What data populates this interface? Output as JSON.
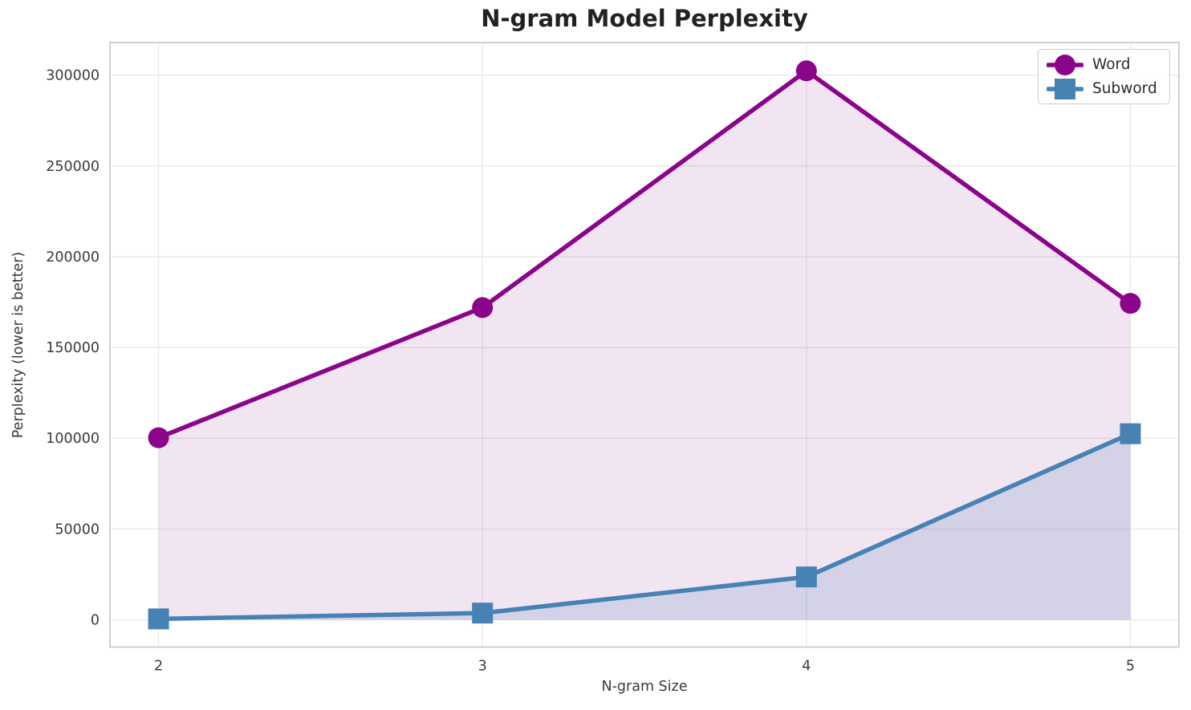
{
  "chart_data": {
    "type": "line",
    "title": "N-gram Model Perplexity",
    "xlabel": "N-gram Size",
    "ylabel": "Perplexity (lower is better)",
    "x": [
      2,
      3,
      4,
      5
    ],
    "series": [
      {
        "name": "Word",
        "marker": "circle",
        "color": "#8A058A",
        "fill_color": "#800080",
        "fill_alpha": 0.1,
        "values": [
          100300,
          172000,
          302400,
          174300
        ]
      },
      {
        "name": "Subword",
        "marker": "square",
        "color": "#4682B4",
        "fill_color": "#4682B4",
        "fill_alpha": 0.18,
        "values": [
          500,
          3700,
          23600,
          102500
        ]
      }
    ],
    "xticks": [
      2,
      3,
      4,
      5
    ],
    "yticks": [
      0,
      50000,
      100000,
      150000,
      200000,
      250000,
      300000
    ],
    "xlim": [
      1.85,
      5.15
    ],
    "ylim": [
      -15000,
      318000
    ],
    "grid": true,
    "area_fill_to_zero": true,
    "legend_position": "upper right"
  },
  "style_colors": {
    "grid": "#e9e9ed",
    "spine": "#cbcbcf",
    "tick_label": "#3a3a3a",
    "title": "#222222"
  }
}
